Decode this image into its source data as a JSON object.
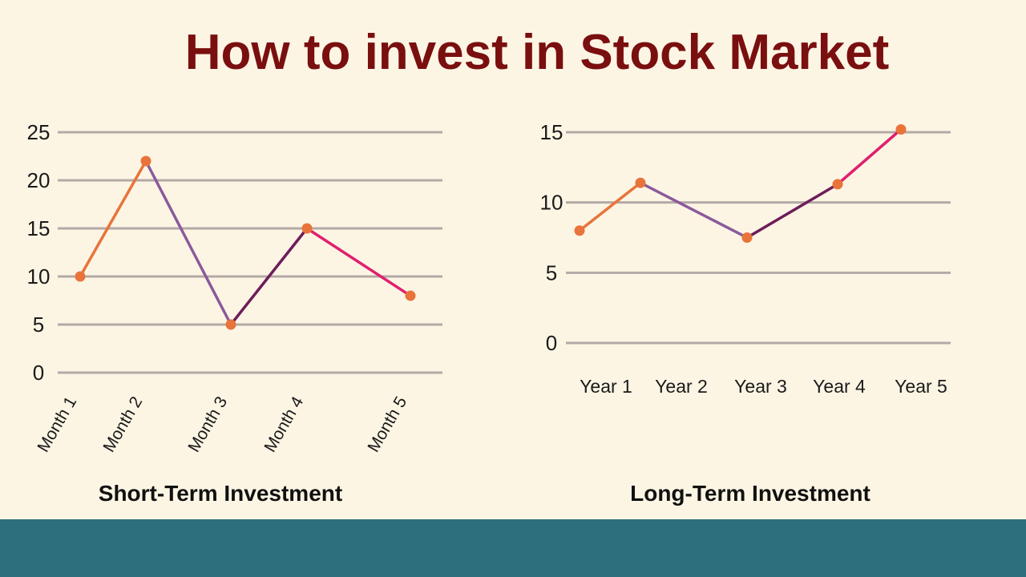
{
  "page": {
    "title": "How to invest in Stock Market",
    "footer_color": "#2e6f7e",
    "background": "#fdf5e4"
  },
  "chart_data": [
    {
      "type": "line",
      "title": "Short-Term Investment",
      "categories": [
        "Month 1",
        "Month 2",
        "Month 3",
        "Month 4",
        "Month 5"
      ],
      "values": [
        10,
        22,
        5,
        15,
        8
      ],
      "ylim": [
        0,
        25
      ],
      "yticks": [
        0,
        5,
        10,
        15,
        20,
        25
      ],
      "grid": true,
      "segment_colors": [
        "#e8743b",
        "#8a5a9c",
        "#6e1d5a",
        "#e0206e"
      ],
      "marker_color": "#e8743b",
      "xlabel_rotation": "rotated"
    },
    {
      "type": "line",
      "title": "Long-Term Investment",
      "categories": [
        "Year 1",
        "Year 2",
        "Year 3",
        "Year 4",
        "Year 5"
      ],
      "values": [
        8,
        11.4,
        7.5,
        11.3,
        15.2
      ],
      "ylim": [
        0,
        15
      ],
      "yticks": [
        0,
        5,
        10,
        15
      ],
      "grid": true,
      "segment_colors": [
        "#e8743b",
        "#8a5a9c",
        "#6e1d5a",
        "#e0206e"
      ],
      "marker_color": "#e8743b",
      "xlabel_rotation": "horizontal"
    }
  ]
}
